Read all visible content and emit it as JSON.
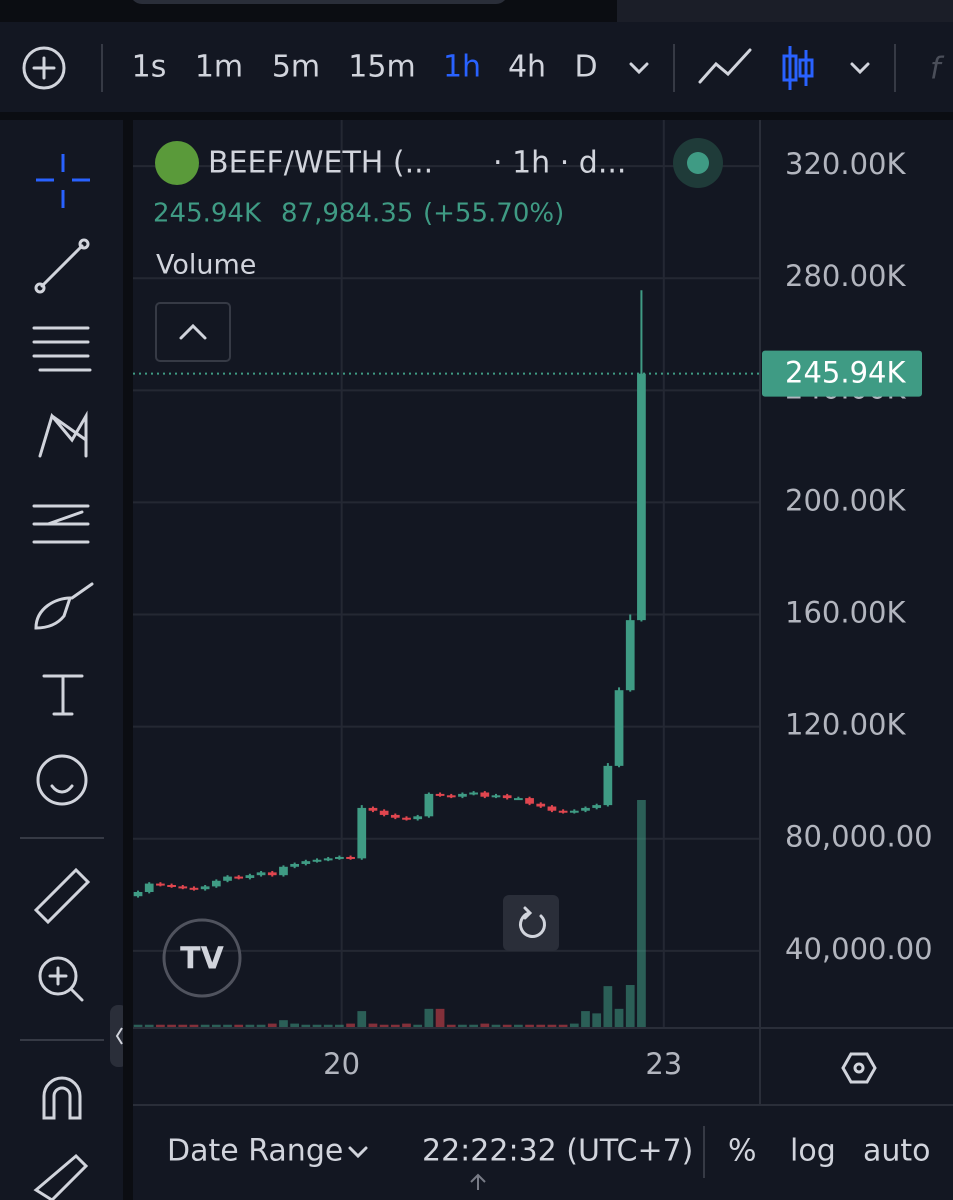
{
  "toolbar": {
    "timeframes": [
      "1s",
      "1m",
      "5m",
      "15m",
      "1h",
      "4h",
      "D"
    ]
  },
  "header": {
    "symbol": "BEEF/WETH (...",
    "interval": "· 1h · d...",
    "price": "245.94K",
    "change": "87,984.35",
    "percent": "(+55.70%)",
    "indicator": "Volume"
  },
  "chart_data": {
    "type": "candlestick",
    "open": [
      59500,
      61000,
      64000,
      63500,
      63000,
      62500,
      62000,
      63000,
      65000,
      66500,
      66000,
      67000,
      68000,
      67000,
      70000,
      71000,
      72000,
      72500,
      73000,
      73500,
      73000,
      91000,
      90000,
      88500,
      87500,
      87000,
      88000,
      96000,
      95500,
      95000,
      96000,
      96500,
      95000,
      95500,
      94500,
      94500,
      92500,
      91500,
      90000,
      89500,
      90000,
      91000,
      92000,
      106000,
      133000,
      158000
    ],
    "high": [
      61500,
      64500,
      64500,
      64000,
      63500,
      63000,
      63500,
      65500,
      67000,
      67000,
      67500,
      68500,
      68500,
      70500,
      71500,
      72500,
      73000,
      73500,
      74000,
      74000,
      92000,
      91500,
      90500,
      89000,
      88000,
      88500,
      96500,
      96500,
      96000,
      96500,
      97000,
      97000,
      96000,
      96000,
      95000,
      95000,
      93000,
      92000,
      90500,
      90500,
      91500,
      92500,
      107000,
      134000,
      160000,
      275700
    ],
    "low": [
      59000,
      60500,
      63000,
      62500,
      62000,
      61500,
      61500,
      62500,
      64500,
      65500,
      65500,
      66500,
      66500,
      66500,
      69500,
      70500,
      71500,
      72000,
      72500,
      72500,
      72500,
      89500,
      88000,
      87000,
      86500,
      86500,
      87500,
      95000,
      94500,
      94500,
      95500,
      94500,
      94500,
      94000,
      94000,
      92000,
      91000,
      89500,
      89000,
      89000,
      89500,
      90500,
      91500,
      105500,
      132500,
      157500
    ],
    "close": [
      61000,
      64000,
      63500,
      63000,
      62500,
      62000,
      63000,
      65000,
      66500,
      66000,
      67000,
      68000,
      67000,
      70000,
      71000,
      72000,
      72500,
      73000,
      73500,
      73000,
      91000,
      90000,
      88500,
      87500,
      87000,
      88000,
      96000,
      95500,
      95000,
      96000,
      96500,
      95000,
      95500,
      94500,
      94500,
      92500,
      91500,
      90000,
      89500,
      90000,
      91000,
      92000,
      106000,
      133000,
      158000,
      245940
    ],
    "volume": [
      1,
      1,
      1,
      1,
      1,
      1,
      1,
      1,
      1,
      1,
      1,
      1,
      1.5,
      3,
      1.5,
      1,
      1,
      1,
      1,
      1.5,
      7,
      1.5,
      1,
      1,
      1.5,
      1,
      8,
      8,
      1,
      1,
      1,
      1.5,
      1,
      1,
      1,
      1,
      1,
      1,
      1,
      1.5,
      7,
      6,
      18,
      8,
      18.5,
      100
    ],
    "up_color": "#3f9b84",
    "down_color": "#e0464f",
    "xlim": [
      -0.45,
      55.6
    ],
    "xticks": [
      {
        "value": 18.2,
        "label": "20"
      },
      {
        "value": 47,
        "label": "23"
      }
    ],
    "ylim": [
      12830,
      336450
    ],
    "yticks": [
      {
        "value": 320000,
        "label": "320.00K"
      },
      {
        "value": 280000,
        "label": "280.00K"
      },
      {
        "value": 240000,
        "label": "240.00K"
      },
      {
        "value": 200000,
        "label": "200.00K"
      },
      {
        "value": 160000,
        "label": "160.00K"
      },
      {
        "value": 120000,
        "label": "120.00K"
      },
      {
        "value": 80000,
        "label": "80,000.00"
      },
      {
        "value": 40000,
        "label": "40,000.00"
      }
    ],
    "last_price": {
      "value": 245940,
      "label": "245.94K"
    },
    "grid": true
  },
  "footer": {
    "range": "Date Range",
    "time": "22:22:32 (UTC+7)",
    "percent": "%",
    "log": "log",
    "auto": "auto"
  }
}
